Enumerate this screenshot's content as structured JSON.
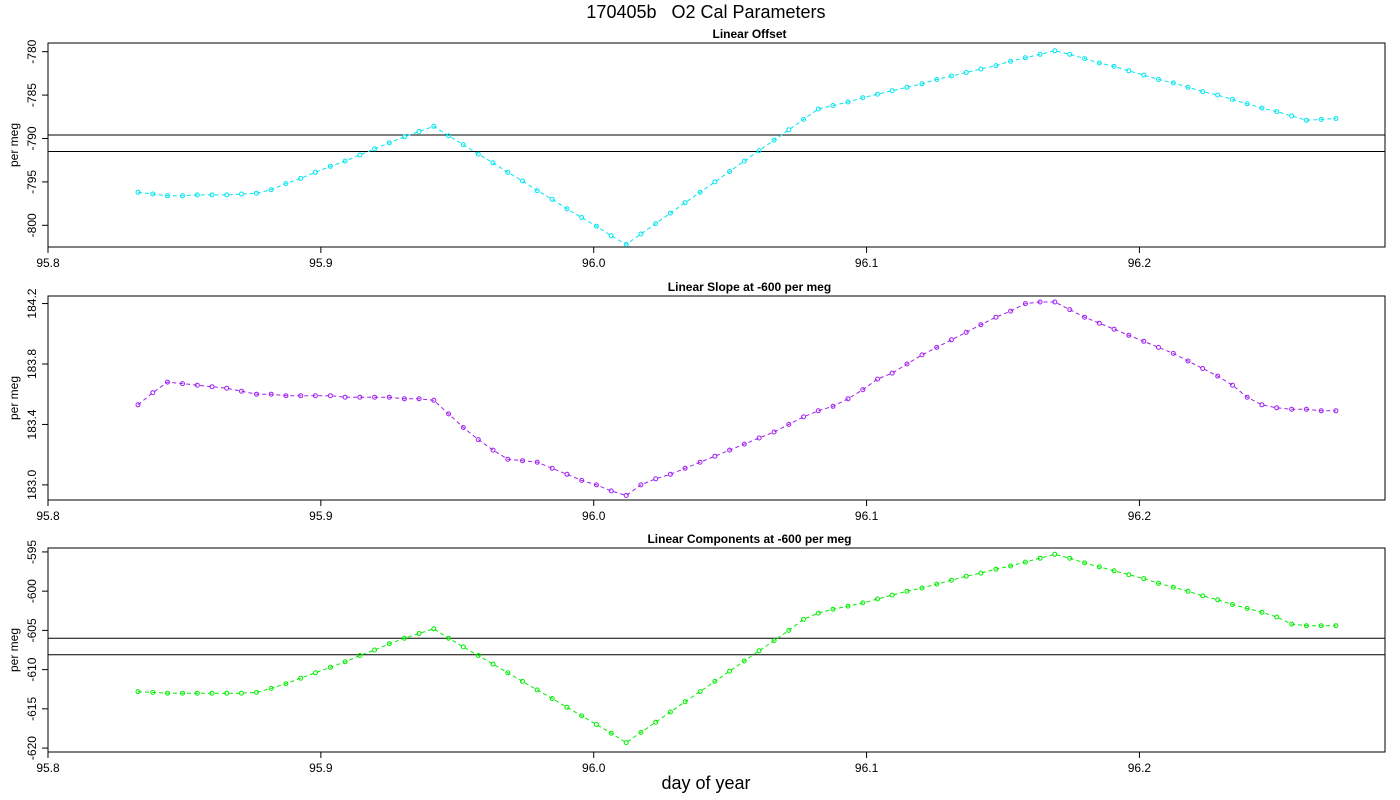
{
  "page": {
    "title": "170405b   O2 Cal Parameters",
    "xlabel": "day of year"
  },
  "chart_data": [
    {
      "type": "line",
      "title": "Linear Offset",
      "ylabel": "per meg",
      "xlim": [
        95.8,
        96.29
      ],
      "ylim": [
        -802.5,
        -779
      ],
      "xticks": [
        95.8,
        95.9,
        96.0,
        96.1,
        96.2
      ],
      "xtick_labels": [
        "95.8",
        "95.9",
        "96.0",
        "96.1",
        "96.2"
      ],
      "yticks": [
        -800,
        -795,
        -790,
        -785,
        -780
      ],
      "ytick_labels": [
        "-800",
        "-795",
        "-790",
        "-785",
        "-780"
      ],
      "hlines": [
        -789.6,
        -791.5
      ],
      "series": [
        {
          "color": "#00e5ee",
          "x": [
            95.833,
            95.8384,
            95.8438,
            95.8493,
            95.8547,
            95.8601,
            95.8655,
            95.8709,
            95.8764,
            95.8818,
            95.8872,
            95.8926,
            95.898,
            95.9035,
            95.9089,
            95.9143,
            95.9197,
            95.9251,
            95.9306,
            95.936,
            95.9414,
            95.9468,
            95.9522,
            95.9577,
            95.9631,
            95.9685,
            95.9739,
            95.9793,
            95.9848,
            95.9902,
            95.9956,
            96.001,
            96.0064,
            96.0119,
            96.0173,
            96.0227,
            96.0281,
            96.0335,
            96.039,
            96.0444,
            96.0498,
            96.0552,
            96.0606,
            96.0661,
            96.0715,
            96.0769,
            96.0823,
            96.0877,
            96.0932,
            96.0986,
            96.104,
            96.1094,
            96.1148,
            96.1203,
            96.1257,
            96.1311,
            96.1365,
            96.1419,
            96.1474,
            96.1528,
            96.1582,
            96.1636,
            96.169,
            96.1745,
            96.1799,
            96.1853,
            96.1907,
            96.1961,
            96.2016,
            96.207,
            96.2124,
            96.2178,
            96.2232,
            96.2287,
            96.2341,
            96.2395,
            96.2449,
            96.2503,
            96.2558,
            96.2612,
            96.2666,
            96.272
          ],
          "y": [
            -796.2,
            -796.4,
            -796.6,
            -796.6,
            -796.5,
            -796.5,
            -796.5,
            -796.4,
            -796.3,
            -795.9,
            -795.2,
            -794.6,
            -793.9,
            -793.2,
            -792.6,
            -791.9,
            -791.2,
            -790.5,
            -789.8,
            -789.2,
            -788.6,
            -789.7,
            -790.7,
            -791.8,
            -792.8,
            -793.9,
            -794.9,
            -796.0,
            -797.0,
            -798.1,
            -799.1,
            -800.1,
            -801.2,
            -802.2,
            -801.0,
            -799.8,
            -798.6,
            -797.4,
            -796.2,
            -795.0,
            -793.8,
            -792.6,
            -791.4,
            -790.2,
            -789.0,
            -787.8,
            -786.6,
            -786.2,
            -785.8,
            -785.3,
            -784.9,
            -784.5,
            -784.1,
            -783.7,
            -783.2,
            -782.8,
            -782.4,
            -782.0,
            -781.6,
            -781.1,
            -780.7,
            -780.3,
            -779.9,
            -780.3,
            -780.8,
            -781.3,
            -781.7,
            -782.2,
            -782.7,
            -783.2,
            -783.6,
            -784.1,
            -784.6,
            -785.0,
            -785.5,
            -786.0,
            -786.5,
            -786.9,
            -787.4,
            -787.9,
            -787.8,
            -787.7
          ]
        }
      ]
    },
    {
      "type": "line",
      "title": "Linear Slope at -600 per meg",
      "ylabel": "per meg",
      "xlim": [
        95.8,
        96.29
      ],
      "ylim": [
        182.9,
        184.25
      ],
      "xticks": [
        95.8,
        95.9,
        96.0,
        96.1,
        96.2
      ],
      "xtick_labels": [
        "95.8",
        "95.9",
        "96.0",
        "96.1",
        "96.2"
      ],
      "yticks": [
        183.0,
        183.4,
        183.8,
        184.2
      ],
      "ytick_labels": [
        "183.0",
        "183.4",
        "183.8",
        "184.2"
      ],
      "hlines": [],
      "series": [
        {
          "color": "#a020f0",
          "x": [
            95.833,
            95.8384,
            95.8438,
            95.8493,
            95.8547,
            95.8601,
            95.8655,
            95.8709,
            95.8764,
            95.8818,
            95.8872,
            95.8926,
            95.898,
            95.9035,
            95.9089,
            95.9143,
            95.9197,
            95.9251,
            95.9306,
            95.936,
            95.9414,
            95.9468,
            95.9522,
            95.9577,
            95.9631,
            95.9685,
            95.9739,
            95.9793,
            95.9848,
            95.9902,
            95.9956,
            96.001,
            96.0064,
            96.0119,
            96.0173,
            96.0227,
            96.0281,
            96.0335,
            96.039,
            96.0444,
            96.0498,
            96.0552,
            96.0606,
            96.0661,
            96.0715,
            96.0769,
            96.0823,
            96.0877,
            96.0932,
            96.0986,
            96.104,
            96.1094,
            96.1148,
            96.1203,
            96.1257,
            96.1311,
            96.1365,
            96.1419,
            96.1474,
            96.1528,
            96.1582,
            96.1636,
            96.169,
            96.1745,
            96.1799,
            96.1853,
            96.1907,
            96.1961,
            96.2016,
            96.207,
            96.2124,
            96.2178,
            96.2232,
            96.2287,
            96.2341,
            96.2395,
            96.2449,
            96.2503,
            96.2558,
            96.2612,
            96.2666,
            96.272
          ],
          "y": [
            183.53,
            183.61,
            183.68,
            183.67,
            183.66,
            183.65,
            183.64,
            183.62,
            183.6,
            183.6,
            183.59,
            183.59,
            183.59,
            183.59,
            183.58,
            183.58,
            183.58,
            183.58,
            183.57,
            183.57,
            183.56,
            183.47,
            183.38,
            183.3,
            183.23,
            183.17,
            183.16,
            183.15,
            183.11,
            183.07,
            183.03,
            183.0,
            182.96,
            182.93,
            183.0,
            183.04,
            183.07,
            183.11,
            183.15,
            183.19,
            183.23,
            183.27,
            183.31,
            183.35,
            183.4,
            183.45,
            183.49,
            183.52,
            183.57,
            183.63,
            183.7,
            183.74,
            183.8,
            183.86,
            183.91,
            183.96,
            184.01,
            184.06,
            184.11,
            184.15,
            184.2,
            184.21,
            184.21,
            184.16,
            184.11,
            184.07,
            184.03,
            183.99,
            183.95,
            183.91,
            183.87,
            183.82,
            183.77,
            183.72,
            183.66,
            183.58,
            183.53,
            183.51,
            183.5,
            183.5,
            183.49,
            183.49
          ]
        }
      ]
    },
    {
      "type": "line",
      "title": "Linear Components at -600 per meg",
      "ylabel": "per meg",
      "xlim": [
        95.8,
        96.29
      ],
      "ylim": [
        -620.5,
        -594.5
      ],
      "xticks": [
        95.8,
        95.9,
        96.0,
        96.1,
        96.2
      ],
      "xtick_labels": [
        "95.8",
        "95.9",
        "96.0",
        "96.1",
        "96.2"
      ],
      "yticks": [
        -620,
        -615,
        -610,
        -605,
        -600,
        -595
      ],
      "ytick_labels": [
        "-620",
        "-615",
        "-610",
        "-605",
        "-600",
        "-595"
      ],
      "hlines": [
        -606.0,
        -608.1
      ],
      "series": [
        {
          "color": "#00ee00",
          "x": [
            95.833,
            95.8384,
            95.8438,
            95.8493,
            95.8547,
            95.8601,
            95.8655,
            95.8709,
            95.8764,
            95.8818,
            95.8872,
            95.8926,
            95.898,
            95.9035,
            95.9089,
            95.9143,
            95.9197,
            95.9251,
            95.9306,
            95.936,
            95.9414,
            95.9468,
            95.9522,
            95.9577,
            95.9631,
            95.9685,
            95.9739,
            95.9793,
            95.9848,
            95.9902,
            95.9956,
            96.001,
            96.0064,
            96.0119,
            96.0173,
            96.0227,
            96.0281,
            96.0335,
            96.039,
            96.0444,
            96.0498,
            96.0552,
            96.0606,
            96.0661,
            96.0715,
            96.0769,
            96.0823,
            96.0877,
            96.0932,
            96.0986,
            96.104,
            96.1094,
            96.1148,
            96.1203,
            96.1257,
            96.1311,
            96.1365,
            96.1419,
            96.1474,
            96.1528,
            96.1582,
            96.1636,
            96.169,
            96.1745,
            96.1799,
            96.1853,
            96.1907,
            96.1961,
            96.2016,
            96.207,
            96.2124,
            96.2178,
            96.2232,
            96.2287,
            96.2341,
            96.2395,
            96.2449,
            96.2503,
            96.2558,
            96.2612,
            96.2666,
            96.272
          ],
          "y": [
            -612.8,
            -612.9,
            -613.0,
            -613.0,
            -613.0,
            -613.0,
            -613.0,
            -613.0,
            -612.9,
            -612.4,
            -611.8,
            -611.1,
            -610.4,
            -609.7,
            -609.0,
            -608.2,
            -607.5,
            -606.7,
            -606.0,
            -605.4,
            -604.8,
            -606.0,
            -607.1,
            -608.2,
            -609.3,
            -610.4,
            -611.5,
            -612.6,
            -613.7,
            -614.8,
            -615.9,
            -617.0,
            -618.1,
            -619.3,
            -618.0,
            -616.7,
            -615.4,
            -614.1,
            -612.8,
            -611.5,
            -610.2,
            -608.9,
            -607.6,
            -606.3,
            -605.0,
            -603.6,
            -602.8,
            -602.3,
            -601.9,
            -601.5,
            -601.0,
            -600.5,
            -600.0,
            -599.6,
            -599.1,
            -598.6,
            -598.1,
            -597.7,
            -597.2,
            -596.8,
            -596.3,
            -595.8,
            -595.3,
            -595.8,
            -596.4,
            -596.9,
            -597.4,
            -597.9,
            -598.4,
            -599.0,
            -599.5,
            -600.0,
            -600.6,
            -601.1,
            -601.7,
            -602.2,
            -602.7,
            -603.3,
            -604.2,
            -604.4,
            -604.4,
            -604.4
          ]
        }
      ]
    }
  ]
}
